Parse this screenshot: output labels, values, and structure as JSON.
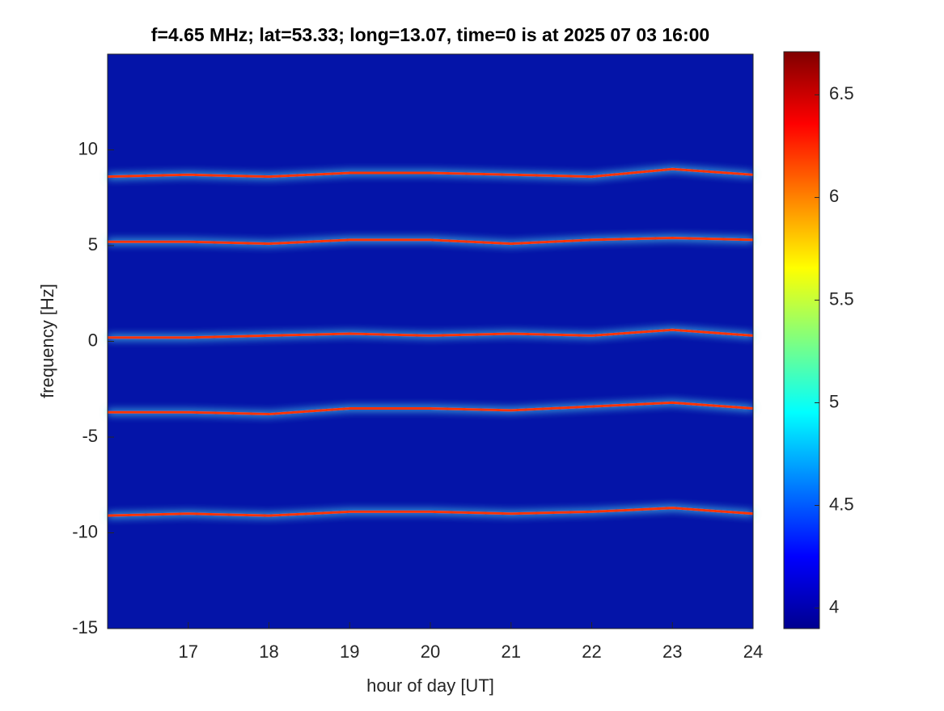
{
  "chart_data": {
    "type": "spectrogram",
    "title": "f=4.65 MHz;  lat=53.33; long=13.07, time=0 is at 2025 07 03 16:00",
    "xlabel": "hour of day [UT]",
    "ylabel": "frequency [Hz]",
    "xlim": [
      16,
      24
    ],
    "xticks": [
      17,
      18,
      19,
      20,
      21,
      22,
      23,
      24
    ],
    "ylim": [
      -15,
      15
    ],
    "yticks": [
      -15,
      -10,
      -5,
      0,
      5,
      10
    ],
    "background": "#0414a8",
    "x": [
      16,
      17,
      18,
      19,
      20,
      21,
      22,
      23,
      24
    ],
    "series": [
      {
        "color": "#ff3000",
        "values": [
          8.6,
          8.7,
          8.6,
          8.8,
          8.8,
          8.7,
          8.6,
          9.0,
          8.7
        ]
      },
      {
        "color": "#ff3000",
        "values": [
          5.2,
          5.2,
          5.1,
          5.3,
          5.3,
          5.1,
          5.3,
          5.4,
          5.3
        ]
      },
      {
        "color": "#ff3000",
        "values": [
          0.2,
          0.2,
          0.3,
          0.4,
          0.3,
          0.4,
          0.3,
          0.6,
          0.3
        ]
      },
      {
        "color": "#ff3000",
        "values": [
          -3.7,
          -3.7,
          -3.8,
          -3.5,
          -3.5,
          -3.6,
          -3.4,
          -3.2,
          -3.5
        ]
      },
      {
        "color": "#ff3000",
        "values": [
          -9.1,
          -9.0,
          -9.1,
          -8.9,
          -8.9,
          -9.0,
          -8.9,
          -8.7,
          -9.0
        ]
      }
    ],
    "colorbar": {
      "lim": [
        3.9,
        6.71
      ],
      "ticks": [
        4,
        4.5,
        5,
        5.5,
        6,
        6.5
      ]
    }
  }
}
